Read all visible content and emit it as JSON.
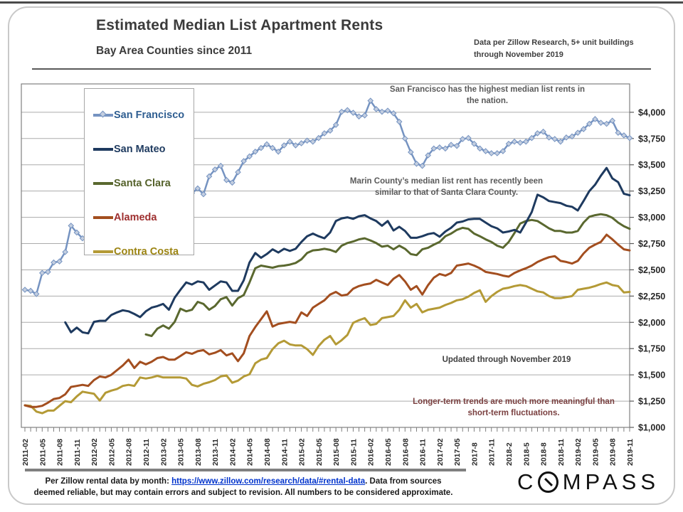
{
  "header": {
    "title": "Estimated Median List Apartment Rents",
    "subtitle": "Bay Area Counties since 2011",
    "source_note": "Data per Zillow Research, 5+ unit buildings through November 2019"
  },
  "annotations": {
    "sf_note": "San Francisco has the highest median list rents in the nation.",
    "marin_note": "Marin County’s median list rent has recently been similar to that of Santa Clara County.",
    "updated_note": "Updated through November 2019",
    "longterm_note": "Longer-term trends are much more meaningful than short-term fluctuations."
  },
  "footer": {
    "line1_prefix": "Per Zillow rental data by month: ",
    "link_text": "https://www.zillow.com/research/data/#rental-data",
    "line1_suffix": ".  Data from sources",
    "line2": "deemed reliable, but may contain errors and subject to revision. All numbers to be considered approximate.",
    "logo": "COMPASS"
  },
  "chart_data": {
    "type": "line",
    "title": "Estimated Median List Apartment Rents",
    "subtitle": "Bay Area Counties since 2011",
    "x_unit": "month",
    "x_start": "2011-02",
    "x_end": "2019-11",
    "x_tick_labels": [
      "2011-02",
      "2011-05",
      "2011-08",
      "2011-11",
      "2012-02",
      "2012-05",
      "2012-08",
      "2012-11",
      "2013-02",
      "2013-05",
      "2013-08",
      "2013-11",
      "2014-02",
      "2014-05",
      "2014-08",
      "2014-11",
      "2015-02",
      "2015-05",
      "2015-08",
      "2015-11",
      "2016-02",
      "2016-05",
      "2016-08",
      "2016-11",
      "2017-02",
      "2017-05",
      "2017-8",
      "2017-11",
      "2018-2",
      "2018-5",
      "2018-8",
      "2018-11",
      "2019-02",
      "2019-05",
      "2019-08",
      "2019-11"
    ],
    "y_ticks": [
      1000,
      1250,
      1500,
      1750,
      2000,
      2250,
      2500,
      2750,
      3000,
      3250,
      3500,
      3750,
      4000
    ],
    "y_tick_labels": [
      "$1,000",
      "$1,250",
      "$1,500",
      "$1,750",
      "$2,000",
      "$2,250",
      "$2,500",
      "$2,750",
      "$3,000",
      "$3,250",
      "$3,500",
      "$3,750",
      "$4,000"
    ],
    "ylim": [
      1000,
      4270
    ],
    "grid": true,
    "grid_color": "#ababab",
    "axis_color": "#808080",
    "legend_position": "upper-left",
    "series": [
      {
        "name": "San Francisco",
        "color": "#7593C1",
        "label_color": "#2F5E91",
        "marker": "diamond",
        "marker_fill": "#C3CEE0",
        "values": [
          2310,
          2300,
          2270,
          2470,
          2480,
          2570,
          2580,
          2670,
          2920,
          2855,
          2800,
          2780,
          2820,
          2860,
          2900,
          2940,
          2970,
          3000,
          3040,
          3070,
          3090,
          3110,
          3140,
          3165,
          3190,
          3210,
          3230,
          3245,
          3235,
          3230,
          3275,
          3220,
          3390,
          3455,
          3490,
          3355,
          3330,
          3430,
          3535,
          3580,
          3625,
          3660,
          3695,
          3660,
          3625,
          3685,
          3720,
          3685,
          3705,
          3730,
          3720,
          3755,
          3800,
          3825,
          3880,
          4005,
          4020,
          3995,
          3960,
          3970,
          4110,
          4030,
          4005,
          4015,
          3990,
          3910,
          3750,
          3620,
          3510,
          3490,
          3590,
          3655,
          3665,
          3655,
          3690,
          3680,
          3745,
          3755,
          3700,
          3655,
          3630,
          3610,
          3610,
          3630,
          3700,
          3720,
          3710,
          3720,
          3755,
          3800,
          3815,
          3760,
          3745,
          3720,
          3760,
          3770,
          3805,
          3840,
          3890,
          3935,
          3900,
          3890,
          3920,
          3805,
          3780,
          3755
        ]
      },
      {
        "name": "San Mateo",
        "color": "#1E3A5F",
        "label_color": "#1E3A5F",
        "values": [
          null,
          null,
          null,
          null,
          null,
          null,
          null,
          2000,
          1905,
          1950,
          1905,
          1895,
          2005,
          2015,
          2015,
          2070,
          2095,
          2115,
          2105,
          2080,
          2050,
          2105,
          2140,
          2155,
          2175,
          2120,
          2235,
          2310,
          2380,
          2360,
          2390,
          2380,
          2310,
          2350,
          2390,
          2380,
          2300,
          2300,
          2400,
          2570,
          2660,
          2615,
          2650,
          2695,
          2665,
          2700,
          2680,
          2700,
          2765,
          2820,
          2845,
          2820,
          2800,
          2855,
          2965,
          2990,
          3000,
          2985,
          3010,
          3020,
          2990,
          2965,
          2920,
          2965,
          2875,
          2910,
          2870,
          2805,
          2805,
          2820,
          2840,
          2850,
          2815,
          2865,
          2900,
          2950,
          2960,
          2980,
          2985,
          2985,
          2950,
          2915,
          2895,
          2855,
          2865,
          2880,
          2855,
          2950,
          3050,
          3215,
          3190,
          3155,
          3145,
          3135,
          3110,
          3100,
          3065,
          3155,
          3250,
          3310,
          3395,
          3470,
          3370,
          3335,
          3225,
          3210
        ]
      },
      {
        "name": "Santa Clara",
        "color": "#5A682F",
        "label_color": "#55622B",
        "values": [
          null,
          null,
          null,
          null,
          null,
          null,
          null,
          null,
          null,
          null,
          null,
          null,
          null,
          null,
          null,
          null,
          null,
          null,
          null,
          null,
          null,
          1885,
          1870,
          1940,
          1970,
          1940,
          2005,
          2130,
          2105,
          2120,
          2195,
          2175,
          2120,
          2155,
          2220,
          2240,
          2160,
          2230,
          2260,
          2380,
          2515,
          2540,
          2530,
          2520,
          2535,
          2540,
          2550,
          2565,
          2600,
          2660,
          2685,
          2690,
          2700,
          2690,
          2670,
          2730,
          2755,
          2770,
          2790,
          2800,
          2780,
          2755,
          2720,
          2730,
          2695,
          2730,
          2700,
          2650,
          2640,
          2695,
          2710,
          2740,
          2765,
          2820,
          2845,
          2880,
          2900,
          2890,
          2845,
          2820,
          2790,
          2765,
          2730,
          2710,
          2765,
          2850,
          2940,
          2965,
          2975,
          2965,
          2930,
          2895,
          2870,
          2870,
          2855,
          2855,
          2870,
          2950,
          3005,
          3020,
          3030,
          3020,
          2995,
          2950,
          2915,
          2890
        ]
      },
      {
        "name": "Alameda",
        "color": "#A34E1F",
        "label_color": "#9E2F2F",
        "values": [
          1210,
          1195,
          1195,
          1205,
          1235,
          1270,
          1280,
          1315,
          1385,
          1395,
          1405,
          1395,
          1450,
          1485,
          1475,
          1500,
          1545,
          1590,
          1645,
          1565,
          1625,
          1600,
          1625,
          1660,
          1670,
          1645,
          1645,
          1680,
          1715,
          1700,
          1725,
          1735,
          1695,
          1710,
          1735,
          1685,
          1705,
          1630,
          1705,
          1870,
          1955,
          2030,
          2105,
          1960,
          1985,
          1995,
          2005,
          1995,
          2095,
          2060,
          2140,
          2175,
          2210,
          2265,
          2290,
          2255,
          2265,
          2320,
          2345,
          2360,
          2370,
          2405,
          2380,
          2355,
          2415,
          2450,
          2390,
          2310,
          2345,
          2265,
          2355,
          2425,
          2460,
          2445,
          2470,
          2540,
          2550,
          2560,
          2540,
          2515,
          2480,
          2470,
          2460,
          2445,
          2435,
          2470,
          2495,
          2515,
          2540,
          2575,
          2600,
          2620,
          2630,
          2585,
          2575,
          2560,
          2585,
          2655,
          2710,
          2740,
          2765,
          2835,
          2790,
          2740,
          2695,
          2685
        ]
      },
      {
        "name": "Contra Costa",
        "color": "#B49A36",
        "label_color": "#9C8412",
        "values": [
          1210,
          1205,
          1150,
          1135,
          1160,
          1160,
          1205,
          1250,
          1240,
          1295,
          1340,
          1330,
          1320,
          1255,
          1330,
          1350,
          1365,
          1395,
          1405,
          1395,
          1475,
          1465,
          1475,
          1490,
          1475,
          1475,
          1475,
          1475,
          1465,
          1405,
          1390,
          1415,
          1430,
          1450,
          1485,
          1495,
          1425,
          1445,
          1485,
          1505,
          1610,
          1645,
          1660,
          1745,
          1800,
          1825,
          1790,
          1780,
          1780,
          1745,
          1690,
          1775,
          1835,
          1870,
          1790,
          1830,
          1880,
          1995,
          2020,
          2040,
          1975,
          1985,
          2040,
          2050,
          2060,
          2120,
          2210,
          2140,
          2175,
          2095,
          2120,
          2130,
          2140,
          2165,
          2185,
          2210,
          2220,
          2245,
          2280,
          2305,
          2195,
          2250,
          2290,
          2320,
          2330,
          2345,
          2355,
          2345,
          2320,
          2295,
          2285,
          2250,
          2230,
          2230,
          2240,
          2250,
          2310,
          2320,
          2330,
          2345,
          2365,
          2380,
          2355,
          2345,
          2285,
          2290
        ]
      }
    ]
  }
}
